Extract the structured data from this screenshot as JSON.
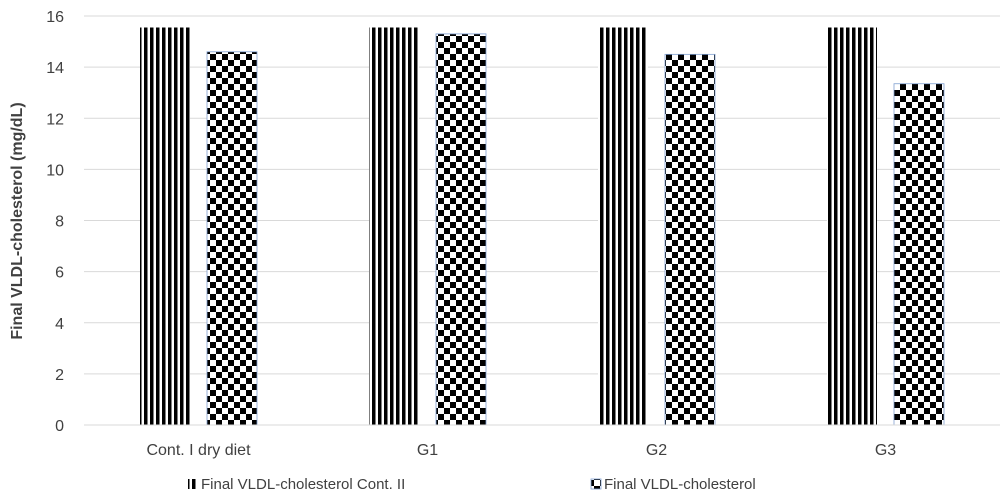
{
  "chart_data": {
    "type": "bar",
    "title": "",
    "xlabel": "",
    "ylabel": "Final VLDL-cholesterol (mg/dL)",
    "ylim": [
      0,
      16
    ],
    "yticks": [
      0,
      2,
      4,
      6,
      8,
      10,
      12,
      14,
      16
    ],
    "grid": true,
    "legend_position": "bottom",
    "categories": [
      "Cont. I dry diet",
      "G1",
      "G2",
      "G3"
    ],
    "series": [
      {
        "name": "Final VLDL-cholesterol Cont. II",
        "pattern": "vertical-stripes",
        "color": "#000000",
        "values": [
          15.55,
          15.55,
          15.55,
          15.55
        ]
      },
      {
        "name": "Final VLDL-cholesterol",
        "pattern": "checkerboard",
        "color": "#000000",
        "values": [
          14.6,
          15.3,
          14.5,
          13.35
        ]
      }
    ]
  }
}
